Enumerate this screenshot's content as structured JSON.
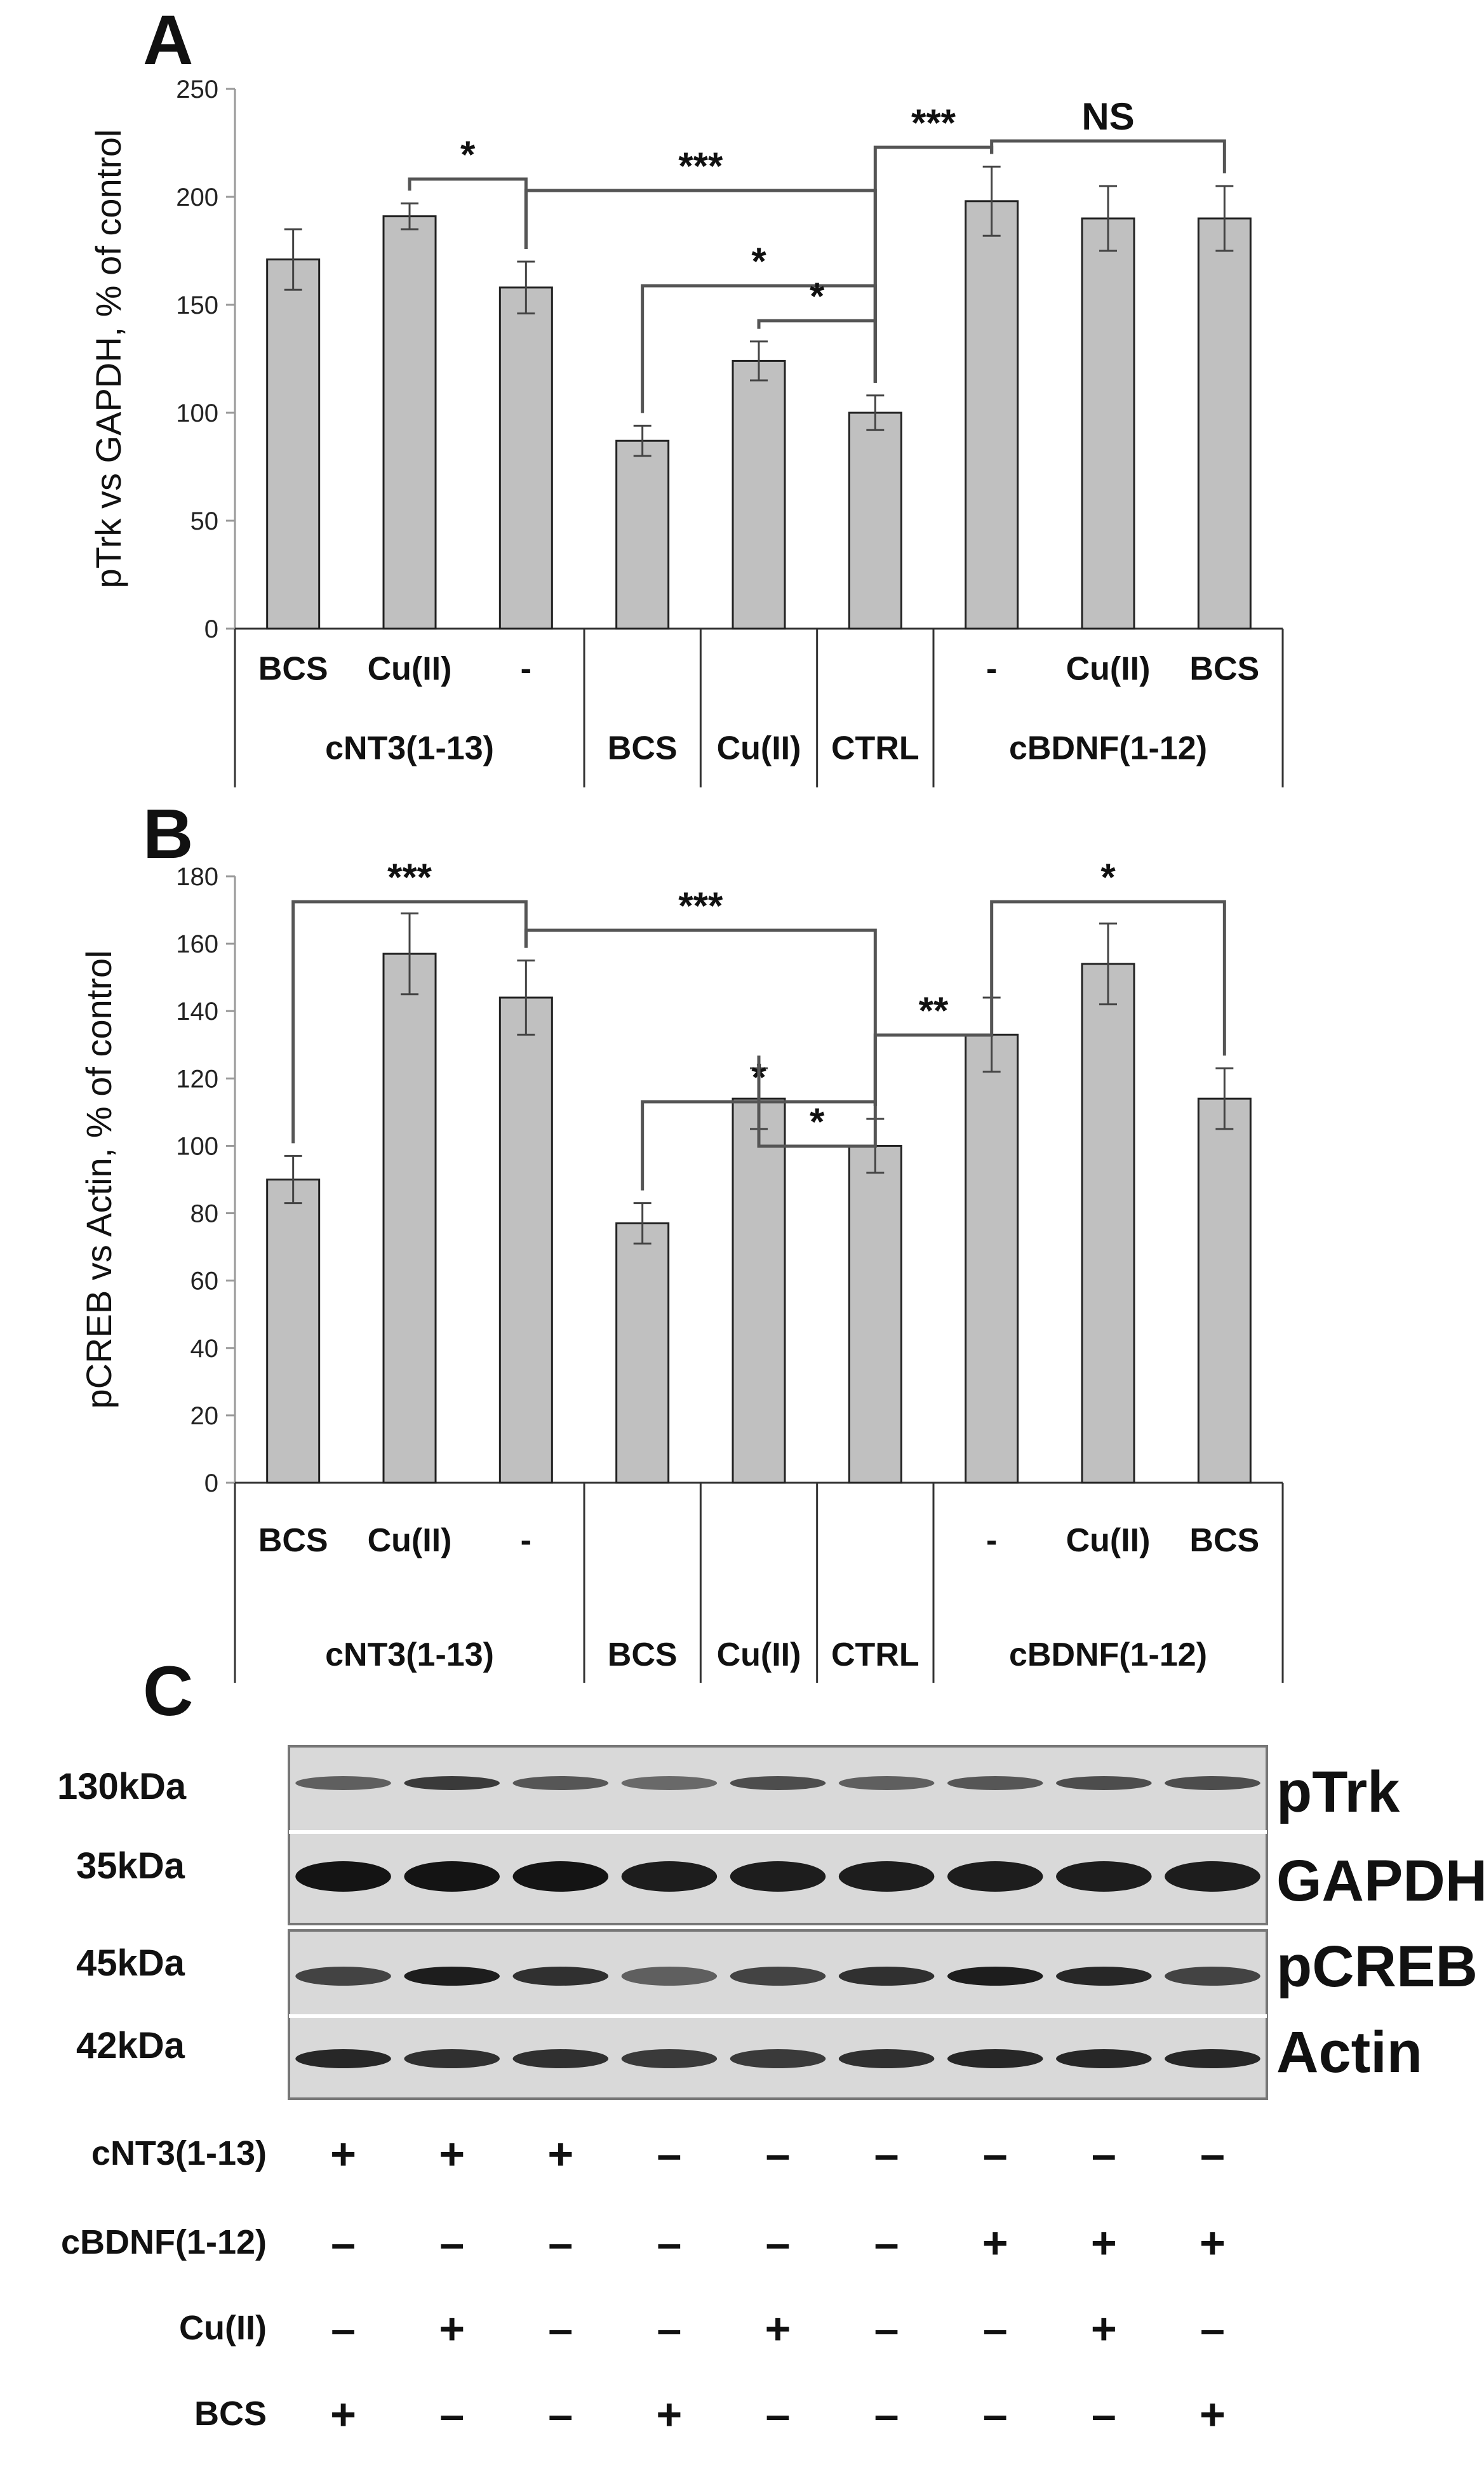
{
  "panels": {
    "a": {
      "letter": "A"
    },
    "b": {
      "letter": "B"
    },
    "c": {
      "letter": "C"
    }
  },
  "chart_data": [
    {
      "type": "bar",
      "panel": "A",
      "ylabel": "pTrk vs GAPDH, % of control",
      "ylim": [
        0,
        250
      ],
      "yticks": [
        0,
        50,
        100,
        150,
        200,
        250
      ],
      "categories": [
        "BCS",
        "Cu(II)",
        "-",
        "BCS",
        "Cu(II)",
        "CTRL",
        "-",
        "Cu(II)",
        "BCS"
      ],
      "groups": [
        {
          "label": "cNT3(1-13)",
          "span": [
            0,
            2
          ]
        },
        {
          "label": "BCS",
          "span": [
            3,
            3
          ]
        },
        {
          "label": "Cu(II)",
          "span": [
            4,
            4
          ]
        },
        {
          "label": "CTRL",
          "span": [
            5,
            5
          ]
        },
        {
          "label": "cBDNF(1-12)",
          "span": [
            6,
            8
          ]
        }
      ],
      "values": [
        171,
        191,
        158,
        87,
        124,
        100,
        198,
        190,
        190
      ],
      "errors": [
        14,
        6,
        12,
        7,
        9,
        8,
        16,
        15,
        15
      ],
      "bar_color": "#c0c0c0",
      "significance": [
        {
          "from": 1,
          "to": 2,
          "label": "*"
        },
        {
          "from": 2,
          "to": 5,
          "label": "***"
        },
        {
          "from": 3,
          "to": 5,
          "label": "*"
        },
        {
          "from": 4,
          "to": 5,
          "label": "*"
        },
        {
          "from": 5,
          "to": 6,
          "label": "***"
        },
        {
          "from": 6,
          "to": 8,
          "label": "NS"
        }
      ]
    },
    {
      "type": "bar",
      "panel": "B",
      "ylabel": "pCREB vs Actin, % of control",
      "ylim": [
        0,
        180
      ],
      "yticks": [
        0,
        20,
        40,
        60,
        80,
        100,
        120,
        140,
        160,
        180
      ],
      "categories": [
        "BCS",
        "Cu(II)",
        "-",
        "BCS",
        "Cu(II)",
        "CTRL",
        "-",
        "Cu(II)",
        "BCS"
      ],
      "groups": [
        {
          "label": "cNT3(1-13)",
          "span": [
            0,
            2
          ]
        },
        {
          "label": "BCS",
          "span": [
            3,
            3
          ]
        },
        {
          "label": "Cu(II)",
          "span": [
            4,
            4
          ]
        },
        {
          "label": "CTRL",
          "span": [
            5,
            5
          ]
        },
        {
          "label": "cBDNF(1-12)",
          "span": [
            6,
            8
          ]
        }
      ],
      "values": [
        90,
        157,
        144,
        77,
        114,
        100,
        133,
        154,
        114
      ],
      "errors": [
        7,
        12,
        11,
        6,
        9,
        8,
        11,
        12,
        9
      ],
      "bar_color": "#c0c0c0",
      "significance": [
        {
          "from": 0,
          "to": 2,
          "label": "***"
        },
        {
          "from": 2,
          "to": 5,
          "label": "***"
        },
        {
          "from": 3,
          "to": 5,
          "label": "*"
        },
        {
          "from": 4,
          "to": 5,
          "label": "*"
        },
        {
          "from": 5,
          "to": 6,
          "label": "**"
        },
        {
          "from": 6,
          "to": 8,
          "label": "*"
        }
      ]
    }
  ],
  "blot": {
    "kda": [
      "130kDa",
      "35kDa",
      "45kDa",
      "42kDa"
    ],
    "proteins": [
      "pTrk",
      "GAPDH",
      "pCREB",
      "Actin"
    ],
    "conditions": [
      {
        "label": "cNT3(1-13)",
        "signs": [
          "+",
          "+",
          "+",
          "–",
          "–",
          "–",
          "–",
          "–",
          "–"
        ]
      },
      {
        "label": "cBDNF(1-12)",
        "signs": [
          "–",
          "–",
          "–",
          "–",
          "–",
          "–",
          "+",
          "+",
          "+"
        ]
      },
      {
        "label": "Cu(II)",
        "signs": [
          "–",
          "+",
          "–",
          "–",
          "+",
          "–",
          "–",
          "+",
          "–"
        ]
      },
      {
        "label": "BCS",
        "signs": [
          "+",
          "–",
          "–",
          "+",
          "–",
          "–",
          "–",
          "–",
          "+"
        ]
      }
    ],
    "band_intensity": {
      "pTrk": [
        0.55,
        0.75,
        0.6,
        0.5,
        0.65,
        0.55,
        0.6,
        0.65,
        0.65
      ],
      "GAPDH": [
        0.95,
        0.95,
        0.95,
        0.9,
        0.9,
        0.9,
        0.9,
        0.9,
        0.9
      ],
      "pCREB": [
        0.7,
        0.9,
        0.8,
        0.55,
        0.7,
        0.8,
        0.9,
        0.85,
        0.7
      ],
      "Actin": [
        0.85,
        0.8,
        0.8,
        0.75,
        0.75,
        0.8,
        0.85,
        0.85,
        0.85
      ]
    }
  }
}
